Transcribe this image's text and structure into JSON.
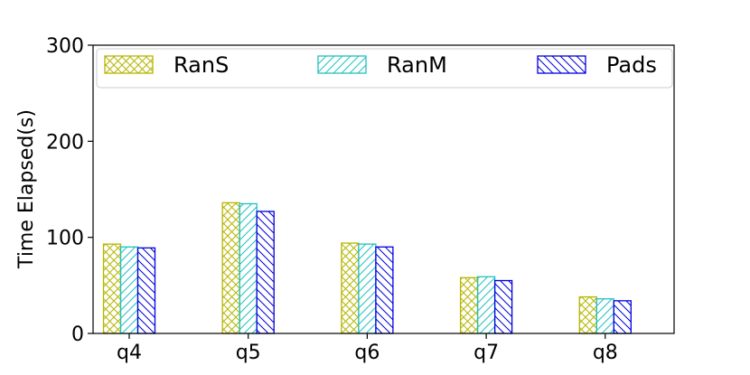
{
  "chart_data": {
    "type": "bar",
    "title": "",
    "xlabel": "",
    "ylabel": "Time Elapsed(s)",
    "ylim": [
      0,
      300
    ],
    "yticks": [
      0,
      100,
      200,
      300
    ],
    "categories": [
      "q4",
      "q5",
      "q6",
      "q7",
      "q8"
    ],
    "series": [
      {
        "name": "RanS",
        "color": "#b5b500",
        "hatch": "crosshatch",
        "values": [
          93,
          136,
          94,
          58,
          38
        ]
      },
      {
        "name": "RanM",
        "color": "#1fc1c1",
        "hatch": "diagonal-forward",
        "values": [
          90,
          135,
          93,
          59,
          36
        ]
      },
      {
        "name": "Pads",
        "color": "#0000dd",
        "hatch": "diagonal-back",
        "values": [
          89,
          127,
          90,
          55,
          34
        ]
      }
    ],
    "legend": {
      "position": "top",
      "columns": 3
    },
    "grid": false
  }
}
